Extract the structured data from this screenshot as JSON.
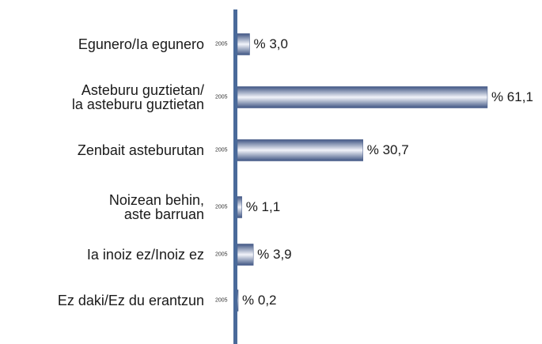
{
  "chart_data": {
    "type": "bar",
    "orientation": "horizontal",
    "categories": [
      "Egunero/Ia egunero",
      "Asteburu guztietan/\nla asteburu guztietan",
      "Zenbait asteburutan",
      "Noizean behin,\naste barruan",
      "Ia inoiz ez/Inoiz ez",
      "Ez daki/Ez du erantzun"
    ],
    "series": [
      {
        "name": "2005",
        "color": "#4a5f8c",
        "values": [
          3.0,
          61.1,
          30.7,
          1.1,
          3.9,
          0.2
        ],
        "value_labels": [
          "% 3,0",
          "% 61,1",
          "% 30,7",
          "% 1,1",
          "% 3,9",
          "% 0,2"
        ]
      }
    ],
    "xlim": [
      0,
      70
    ]
  }
}
